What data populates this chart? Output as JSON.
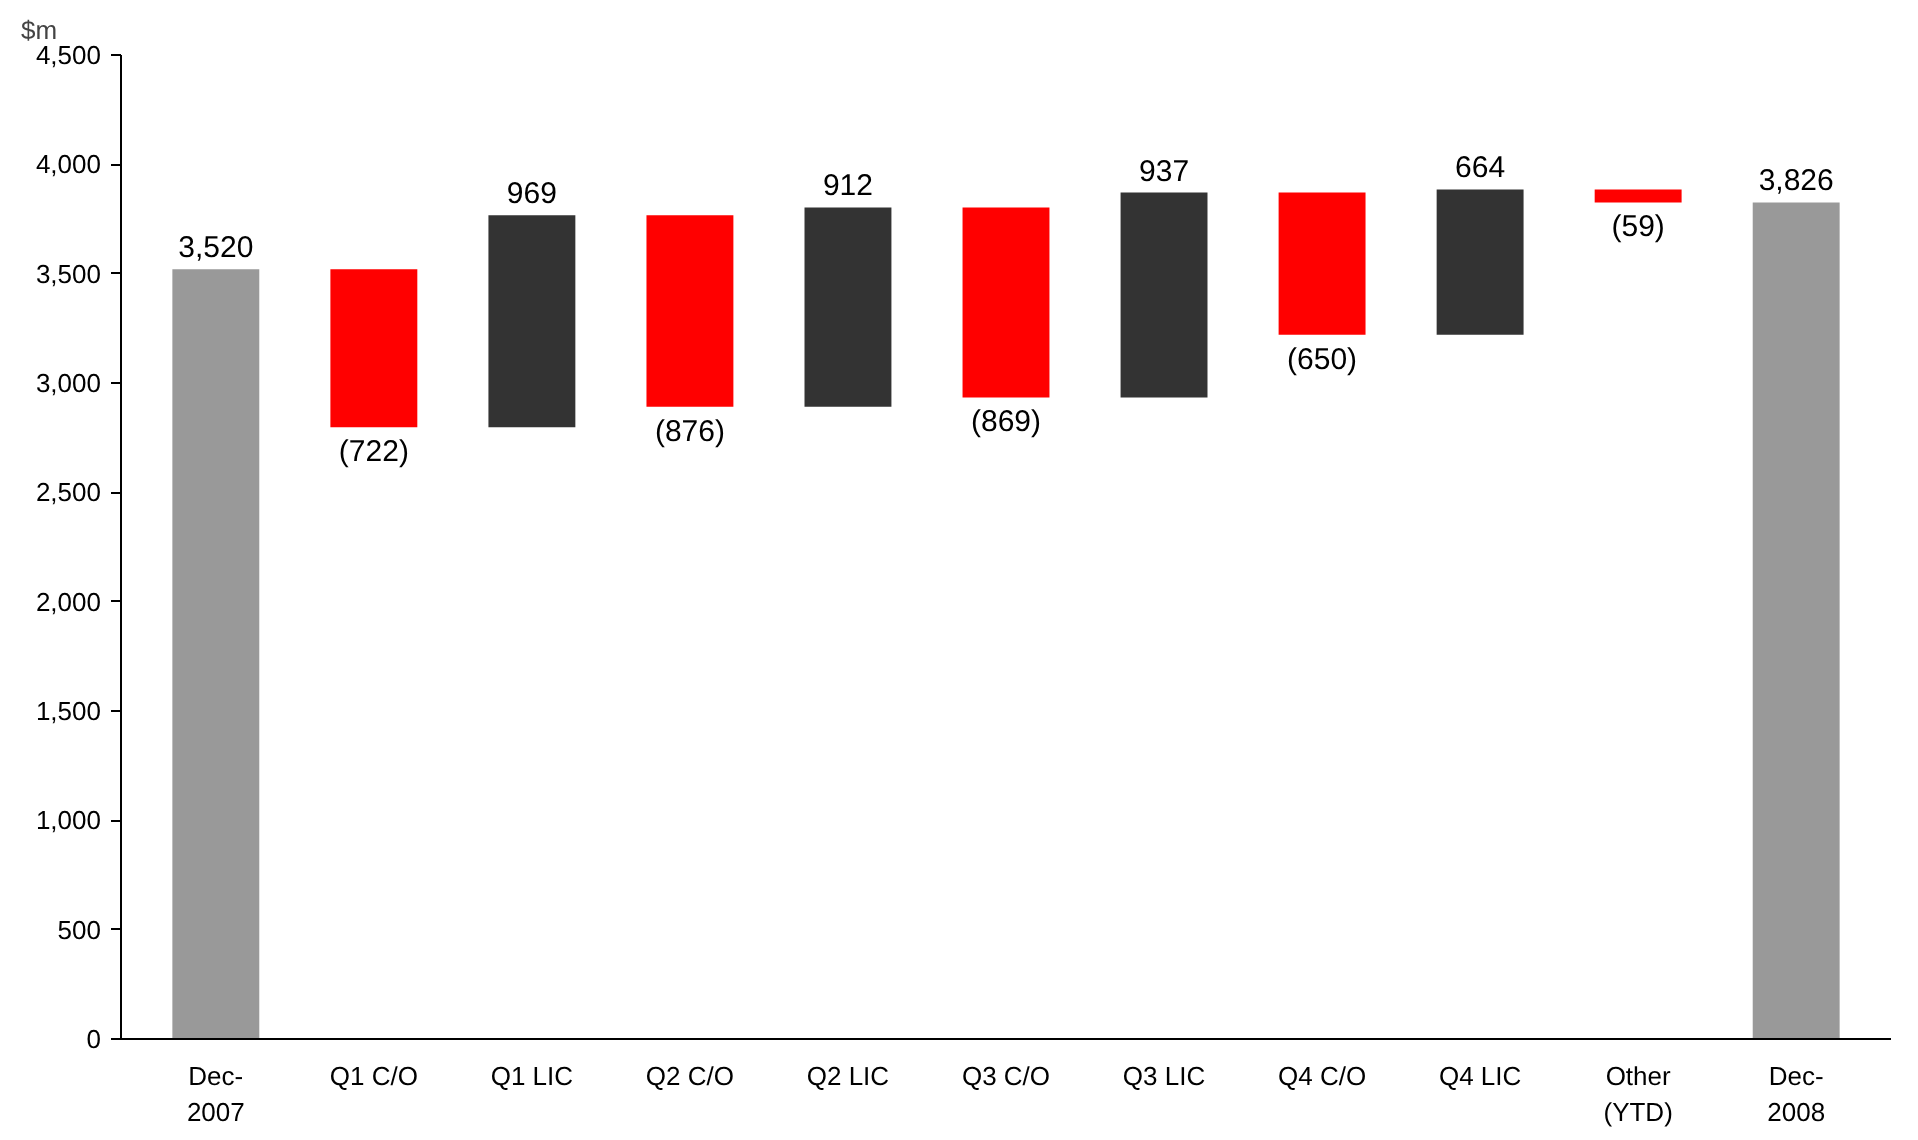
{
  "chart_data": {
    "type": "bar",
    "ylabel": "$m",
    "categories": [
      "Dec-\n2007",
      "Q1 C/O",
      "Q1 LIC",
      "Q2 C/O",
      "Q2 LIC",
      "Q3 C/O",
      "Q3 LIC",
      "Q4 C/O",
      "Q4 LIC",
      "Other\n(YTD)",
      "Dec-\n2008"
    ],
    "values": [
      3520,
      -722,
      969,
      -876,
      912,
      -869,
      937,
      -650,
      664,
      -59,
      3826
    ],
    "base": [
      0,
      3520,
      2798,
      3767,
      2891,
      3803,
      2934,
      3871,
      3221,
      3885,
      0
    ],
    "colors": [
      "#999999",
      "#ff0000",
      "#333333",
      "#ff0000",
      "#333333",
      "#ff0000",
      "#333333",
      "#ff0000",
      "#333333",
      "#ff0000",
      "#999999"
    ],
    "value_labels": [
      "3,520",
      "(722)",
      "969",
      "(876)",
      "912",
      "(869)",
      "937",
      "(650)",
      "664",
      "(59)",
      "3,826"
    ],
    "ylim": [
      0,
      4500
    ],
    "yticks": [
      {
        "value": 0,
        "label": "0"
      },
      {
        "value": 500,
        "label": "500"
      },
      {
        "value": 1000,
        "label": "1,000"
      },
      {
        "value": 1500,
        "label": "1,500"
      },
      {
        "value": 2000,
        "label": "2,000"
      },
      {
        "value": 2500,
        "label": "2,500"
      },
      {
        "value": 3000,
        "label": "3,000"
      },
      {
        "value": 3500,
        "label": "3,500"
      },
      {
        "value": 4000,
        "label": "4,000"
      },
      {
        "value": 4500,
        "label": "4,500"
      }
    ],
    "grid": false
  }
}
